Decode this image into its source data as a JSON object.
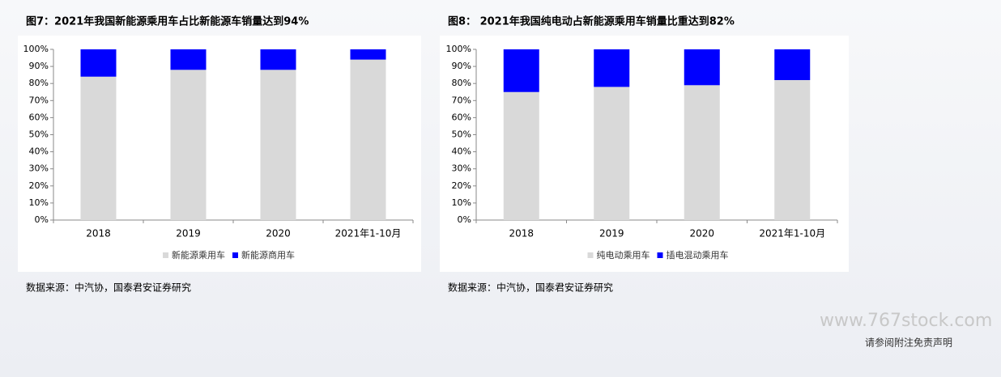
{
  "chart_data": [
    {
      "type": "stacked_bar",
      "title": "图7：2021年我国新能源乘用车占比新能源车销量达到94%",
      "categories": [
        "2018",
        "2019",
        "2020",
        "2021年1-10月"
      ],
      "series": [
        {
          "name": "新能源乘用车",
          "color": "#d9d9d9",
          "values": [
            84,
            88,
            88,
            94
          ]
        },
        {
          "name": "新能源商用车",
          "color": "#0000ff",
          "values": [
            16,
            12,
            12,
            6
          ]
        }
      ],
      "ylim": [
        0,
        100
      ],
      "yticks": [
        {
          "value": 0,
          "label": "0%"
        },
        {
          "value": 10,
          "label": "10%"
        },
        {
          "value": 20,
          "label": "20%"
        },
        {
          "value": 30,
          "label": "30%"
        },
        {
          "value": 40,
          "label": "40%"
        },
        {
          "value": 50,
          "label": "50%"
        },
        {
          "value": 60,
          "label": "60%"
        },
        {
          "value": 70,
          "label": "70%"
        },
        {
          "value": 80,
          "label": "80%"
        },
        {
          "value": 90,
          "label": "90%"
        },
        {
          "value": 100,
          "label": "100%"
        }
      ],
      "legend": "bottom",
      "source": "数据来源：中汽协，国泰君安证券研究"
    },
    {
      "type": "stacked_bar",
      "title": "图8： 2021年我国纯电动占新能源乘用车销量比重达到82%",
      "categories": [
        "2018",
        "2019",
        "2020",
        "2021年1-10月"
      ],
      "series": [
        {
          "name": "纯电动乘用车",
          "color": "#d9d9d9",
          "values": [
            75,
            78,
            79,
            82
          ]
        },
        {
          "name": "插电混动乘用车",
          "color": "#0000ff",
          "values": [
            25,
            22,
            21,
            18
          ]
        }
      ],
      "ylim": [
        0,
        100
      ],
      "yticks": [
        {
          "value": 0,
          "label": "0%"
        },
        {
          "value": 10,
          "label": "10%"
        },
        {
          "value": 20,
          "label": "20%"
        },
        {
          "value": 30,
          "label": "30%"
        },
        {
          "value": 40,
          "label": "40%"
        },
        {
          "value": 50,
          "label": "50%"
        },
        {
          "value": 60,
          "label": "60%"
        },
        {
          "value": 70,
          "label": "70%"
        },
        {
          "value": 80,
          "label": "80%"
        },
        {
          "value": 90,
          "label": "90%"
        },
        {
          "value": 100,
          "label": "100%"
        }
      ],
      "legend": "bottom",
      "source": "数据来源：中汽协，国泰君安证券研究"
    }
  ],
  "footer": {
    "watermark": "www.767stock.com",
    "disclaimer": "请参阅附注免责声明"
  }
}
